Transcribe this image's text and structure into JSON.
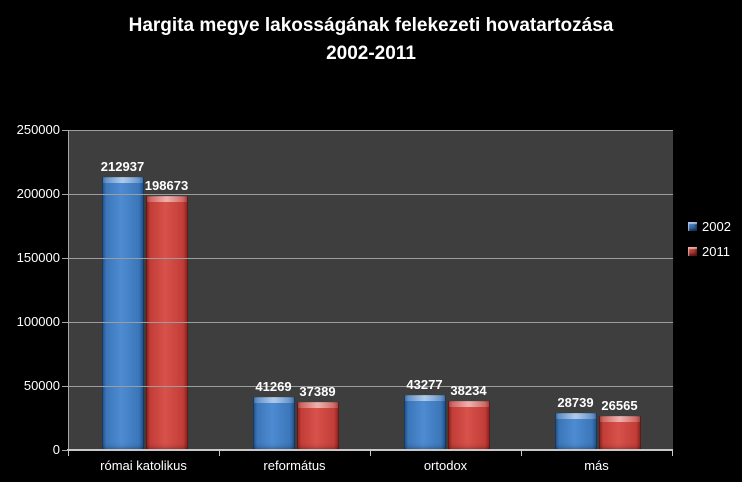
{
  "title": {
    "line1": "Hargita megye lakosságának felekezeti hovatartozása",
    "line2": "2002-2011"
  },
  "chart_data": {
    "type": "bar",
    "title": "Hargita megye lakosságának felekezeti hovatartozása 2002-2011",
    "categories": [
      "római katolikus",
      "református",
      "ortodox",
      "más"
    ],
    "series": [
      {
        "name": "2002",
        "color": "#4080c6",
        "shade_dark": "#1f4d84",
        "shade_mid": "#3b76b8",
        "shade_light": "#4e8bd2",
        "values": [
          212937,
          41269,
          43277,
          28739
        ]
      },
      {
        "name": "2011",
        "color": "#d04742",
        "shade_dark": "#88201d",
        "shade_mid": "#c23d38",
        "shade_light": "#d8524b",
        "values": [
          198673,
          37389,
          38234,
          26565
        ]
      }
    ],
    "xlabel": "",
    "ylabel": "",
    "ylim": [
      0,
      250000
    ],
    "ytick_step": 50000,
    "ytick_labels": [
      "0",
      "50000",
      "100000",
      "150000",
      "200000",
      "250000"
    ],
    "grid": true,
    "legend_position": "right",
    "colors": {
      "background": "#000000",
      "plot_background": "#3e3e3e",
      "gridline": "#9d9d9d",
      "axis": "#c8c8c8",
      "text": "#ffffff"
    }
  }
}
